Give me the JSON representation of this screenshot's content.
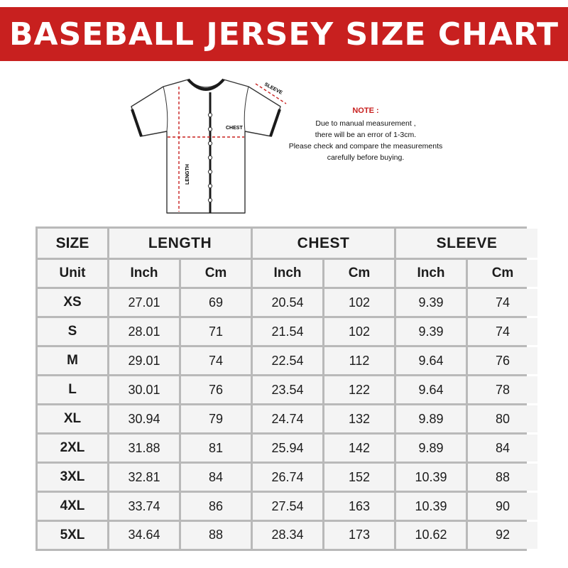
{
  "title": "BASEBALL JERSEY SIZE CHART",
  "diagram": {
    "labels": {
      "sleeve": "SLEEVE",
      "chest": "CHEST",
      "length": "LENGTH"
    }
  },
  "note": {
    "heading": "NOTE :",
    "lines": [
      "Due to manual measurement ,",
      "there will be an error of 1-3cm.",
      "Please check and compare the measurements",
      "carefully before buying."
    ]
  },
  "table": {
    "header": {
      "size": "SIZE",
      "length": "LENGTH",
      "chest": "CHEST",
      "sleeve": "SLEEVE"
    },
    "units": [
      "Unit",
      "Inch",
      "Cm",
      "Inch",
      "Cm",
      "Inch",
      "Cm"
    ],
    "rows": [
      [
        "XS",
        "27.01",
        "69",
        "20.54",
        "102",
        "9.39",
        "74"
      ],
      [
        "S",
        "28.01",
        "71",
        "21.54",
        "102",
        "9.39",
        "74"
      ],
      [
        "M",
        "29.01",
        "74",
        "22.54",
        "112",
        "9.64",
        "76"
      ],
      [
        "L",
        "30.01",
        "76",
        "23.54",
        "122",
        "9.64",
        "78"
      ],
      [
        "XL",
        "30.94",
        "79",
        "24.74",
        "132",
        "9.89",
        "80"
      ],
      [
        "2XL",
        "31.88",
        "81",
        "25.94",
        "142",
        "9.89",
        "84"
      ],
      [
        "3XL",
        "32.81",
        "84",
        "26.74",
        "152",
        "10.39",
        "88"
      ],
      [
        "4XL",
        "33.74",
        "86",
        "27.54",
        "163",
        "10.39",
        "90"
      ],
      [
        "5XL",
        "34.64",
        "88",
        "28.34",
        "173",
        "10.62",
        "92"
      ]
    ]
  },
  "colors": {
    "banner": "#c8201f",
    "note_heading": "#c8201f",
    "grid": "#b9b9b9",
    "cell": "#f4f4f4"
  }
}
